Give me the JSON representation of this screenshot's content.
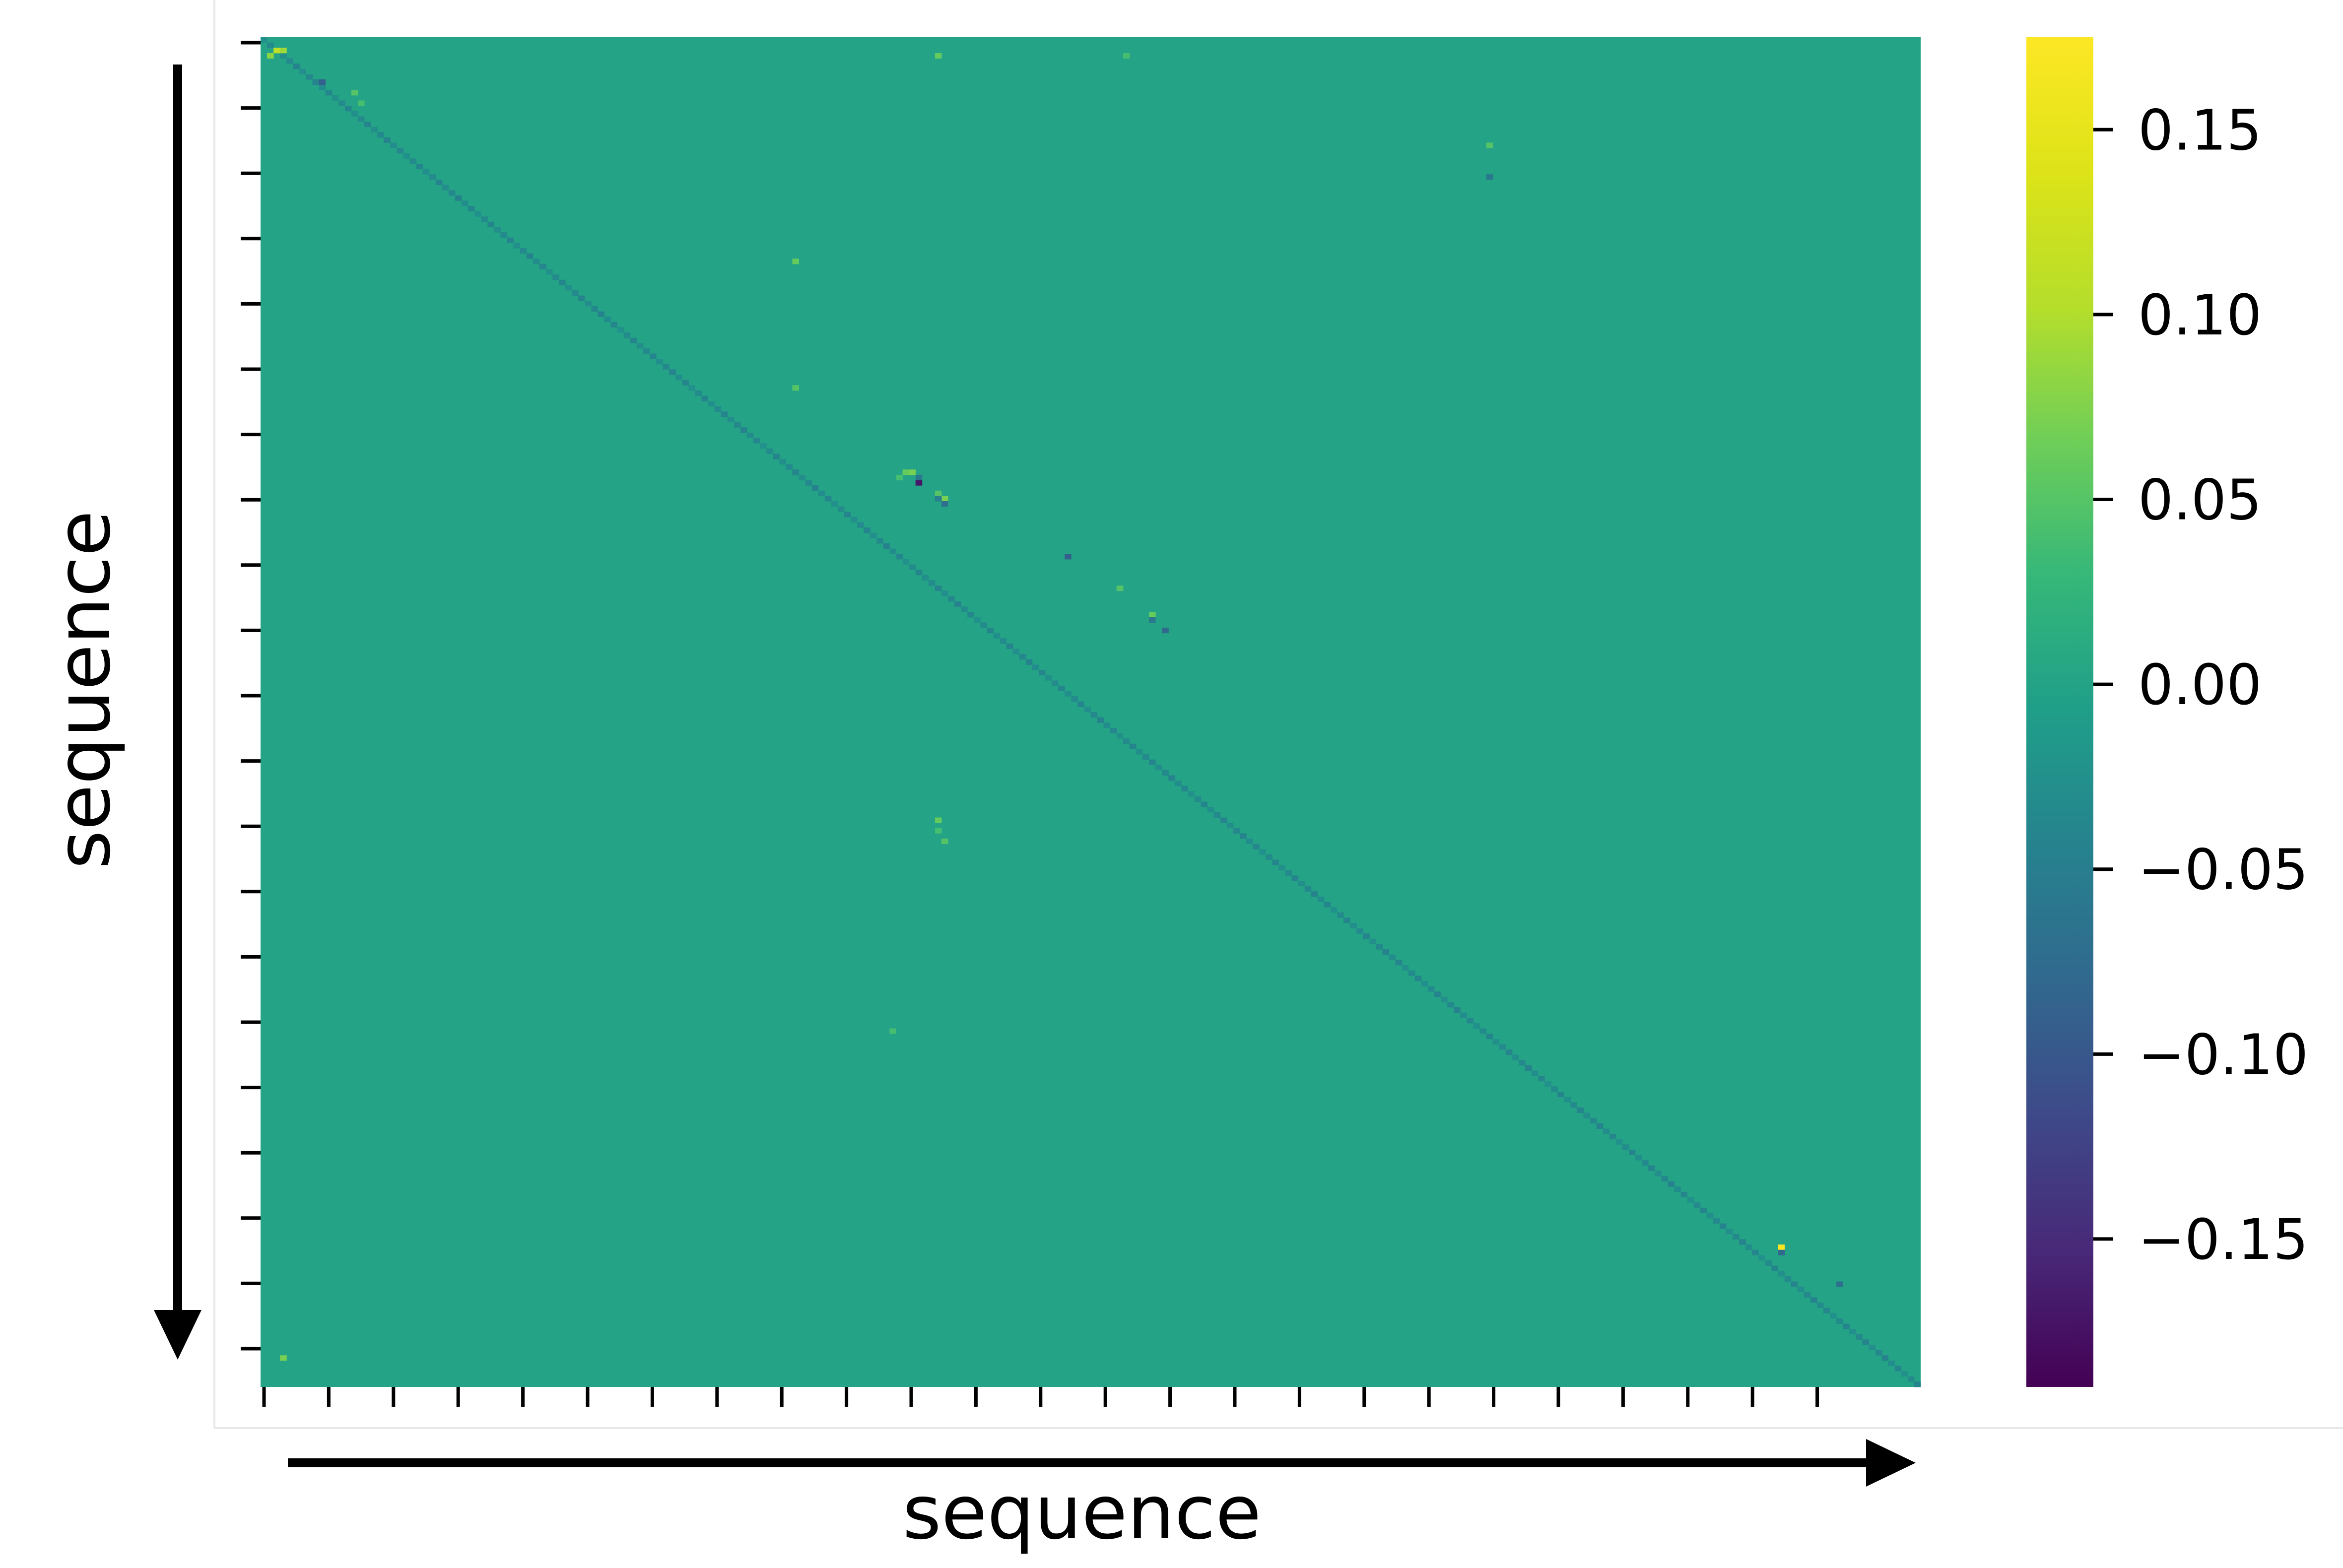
{
  "chart_data": {
    "type": "heatmap",
    "xlabel": "sequence",
    "ylabel": "sequence",
    "matrix_size": 256,
    "base_value": 0.0,
    "colormap": "viridis",
    "colorbar": {
      "min": -0.19,
      "max": 0.175,
      "ticks": [
        {
          "value": 0.15,
          "label": "0.15"
        },
        {
          "value": 0.1,
          "label": "0.10"
        },
        {
          "value": 0.05,
          "label": "0.05"
        },
        {
          "value": 0.0,
          "label": "0.00"
        },
        {
          "value": -0.05,
          "label": "−0.05"
        },
        {
          "value": -0.1,
          "label": "−0.10"
        },
        {
          "value": -0.15,
          "label": "−0.15"
        }
      ]
    },
    "x_tick_count": 25,
    "y_tick_count": 21,
    "diagonal": {
      "typical_value": -0.035
    },
    "highlights": [
      {
        "row": 2,
        "col": 2,
        "value": 0.11
      },
      {
        "row": 2,
        "col": 3,
        "value": 0.09
      },
      {
        "row": 3,
        "col": 1,
        "value": 0.08
      },
      {
        "row": 3,
        "col": 104,
        "value": 0.06
      },
      {
        "row": 3,
        "col": 133,
        "value": 0.04
      },
      {
        "row": 8,
        "col": 9,
        "value": -0.09
      },
      {
        "row": 10,
        "col": 14,
        "value": 0.05
      },
      {
        "row": 12,
        "col": 15,
        "value": 0.04
      },
      {
        "row": 20,
        "col": 189,
        "value": 0.05
      },
      {
        "row": 26,
        "col": 189,
        "value": -0.06
      },
      {
        "row": 42,
        "col": 82,
        "value": 0.06
      },
      {
        "row": 66,
        "col": 82,
        "value": 0.05
      },
      {
        "row": 82,
        "col": 99,
        "value": 0.06
      },
      {
        "row": 82,
        "col": 100,
        "value": 0.07
      },
      {
        "row": 83,
        "col": 98,
        "value": 0.04
      },
      {
        "row": 83,
        "col": 101,
        "value": -0.06
      },
      {
        "row": 84,
        "col": 101,
        "value": -0.17
      },
      {
        "row": 86,
        "col": 104,
        "value": 0.05
      },
      {
        "row": 87,
        "col": 105,
        "value": 0.07
      },
      {
        "row": 87,
        "col": 104,
        "value": -0.05
      },
      {
        "row": 88,
        "col": 105,
        "value": -0.07
      },
      {
        "row": 98,
        "col": 124,
        "value": -0.09
      },
      {
        "row": 104,
        "col": 132,
        "value": 0.05
      },
      {
        "row": 109,
        "col": 137,
        "value": 0.06
      },
      {
        "row": 110,
        "col": 137,
        "value": -0.06
      },
      {
        "row": 112,
        "col": 139,
        "value": -0.08
      },
      {
        "row": 148,
        "col": 104,
        "value": 0.06
      },
      {
        "row": 150,
        "col": 104,
        "value": 0.04
      },
      {
        "row": 152,
        "col": 105,
        "value": 0.05
      },
      {
        "row": 188,
        "col": 97,
        "value": 0.04
      },
      {
        "row": 229,
        "col": 234,
        "value": 0.17
      },
      {
        "row": 230,
        "col": 234,
        "value": -0.08
      },
      {
        "row": 236,
        "col": 243,
        "value": -0.07
      },
      {
        "row": 250,
        "col": 3,
        "value": 0.07
      }
    ]
  }
}
